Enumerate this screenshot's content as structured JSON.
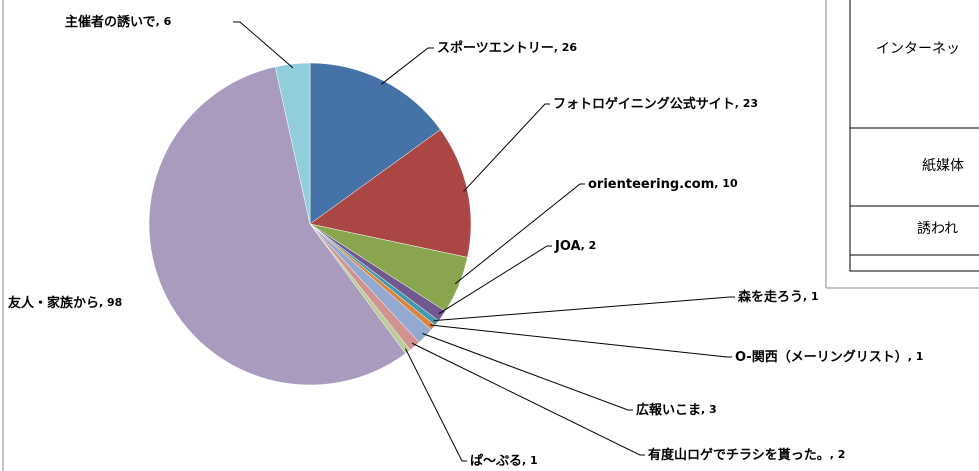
{
  "chart_data": {
    "type": "pie",
    "categories": [
      "スポーツエントリー",
      "フォトロゲイニング公式サイト",
      "orienteering.com",
      "JOA",
      "森を走ろう",
      "O-関西（メーリングリスト）",
      "広報いこま",
      "有度山ロゲでチラシを貰った。",
      "ぱ～ぷる",
      "友人・家族から",
      "主催者の誘いで"
    ],
    "values": [
      26,
      23,
      10,
      2,
      1,
      1,
      3,
      2,
      1,
      98,
      6
    ],
    "colors": [
      "#4572a7",
      "#aa4643",
      "#89a54e",
      "#71588f",
      "#4198af",
      "#db843d",
      "#93a9cf",
      "#d19392",
      "#b9cd96",
      "#a99bbd",
      "#92cddc"
    ],
    "label_separator": ", "
  },
  "table": {
    "rows": [
      "インターネッ",
      "紙媒体",
      "誘われ"
    ]
  }
}
